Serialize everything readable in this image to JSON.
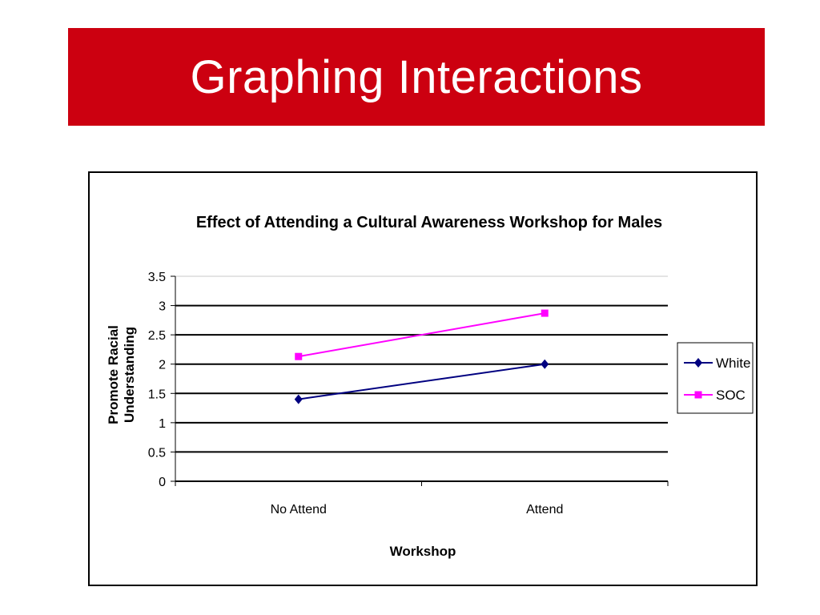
{
  "slide": {
    "title": "Graphing Interactions"
  },
  "colors": {
    "title_bar": "#cc0010",
    "white_series": "#000080",
    "soc_series": "#ff00ff"
  },
  "chart_data": {
    "type": "line",
    "title": "Effect of Attending a Cultural Awareness Workshop for Males",
    "xlabel": "Workshop",
    "ylabel_lines": [
      "Promote Racial",
      "Understanding"
    ],
    "categories": [
      "No Attend",
      "Attend"
    ],
    "ylim": [
      0,
      3.5
    ],
    "yticks": [
      "0",
      "0.5",
      "1",
      "1.5",
      "2",
      "2.5",
      "3",
      "3.5"
    ],
    "grid": true,
    "legend_position": "right",
    "series": [
      {
        "name": "White",
        "values": [
          1.4,
          2.0
        ],
        "color": "#000080",
        "marker": "diamond"
      },
      {
        "name": "SOC",
        "values": [
          2.13,
          2.87
        ],
        "color": "#ff00ff",
        "marker": "square"
      }
    ]
  }
}
